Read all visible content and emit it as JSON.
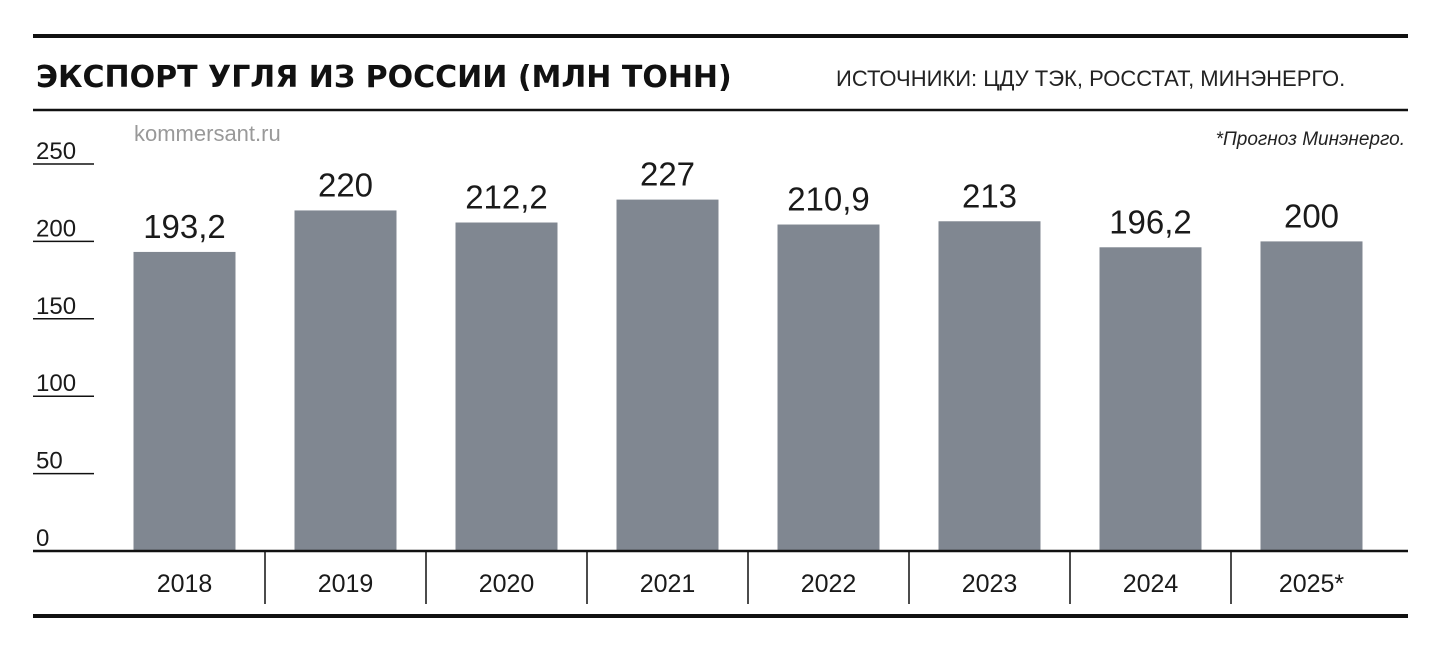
{
  "header": {
    "title": "ЭКСПОРТ УГЛЯ ИЗ РОССИИ (МЛН ТОНН)",
    "source": "ИСТОЧНИКИ: ЦДУ ТЭК, РОССТАТ, МИНЭНЕРГО.",
    "credit": "kommersant.ru",
    "note": "*Прогноз Минэнерго."
  },
  "colors": {
    "bar": "#808791",
    "rule": "#111111",
    "text": "#1a1a1a"
  },
  "chart_data": {
    "type": "bar",
    "title": "ЭКСПОРТ УГЛЯ ИЗ РОССИИ (МЛН ТОНН)",
    "categories": [
      "2018",
      "2019",
      "2020",
      "2021",
      "2022",
      "2023",
      "2024",
      "2025*"
    ],
    "values": [
      193.2,
      220,
      212.2,
      227,
      210.9,
      213,
      196.2,
      200
    ],
    "value_labels": [
      "193,2",
      "220",
      "212,2",
      "227",
      "210,9",
      "213",
      "196,2",
      "200"
    ],
    "yticks": [
      0,
      50,
      100,
      150,
      200,
      250
    ],
    "ylim": [
      0,
      250
    ],
    "xlabel": "",
    "ylabel": "",
    "grid": false,
    "legend": "none"
  }
}
